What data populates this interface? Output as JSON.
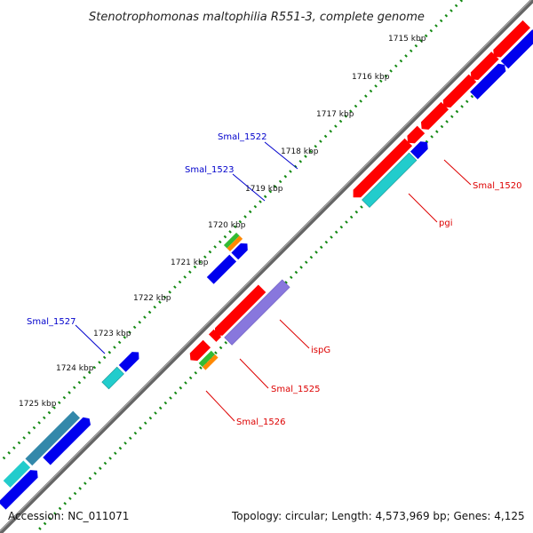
{
  "title": "Stenotrophomonas maltophilia R551-3, complete genome",
  "footer": {
    "accession": "Accession: NC_011071",
    "topology": "Topology: circular; Length: 4,573,969 bp; Genes: 4,125"
  },
  "scale_ticks": [
    "1715 kbp",
    "1716 kbp",
    "1717 kbp",
    "1718 kbp",
    "1719 kbp",
    "1720 kbp",
    "1721 kbp",
    "1722 kbp",
    "1723 kbp",
    "1724 kbp",
    "1725 kbp"
  ],
  "gene_labels": {
    "smal_1522": "Smal_1522",
    "smal_1523": "Smal_1523",
    "smal_1527": "Smal_1527",
    "smal_1520": "Smal_1520",
    "pgi": "pgi",
    "ispg": "ispG",
    "smal_1525": "Smal_1525",
    "smal_1526": "Smal_1526"
  },
  "colors": {
    "cds_forward": "#ff0000",
    "cds_reverse": "#0000ee",
    "rna": "#22cccc",
    "highlight": "#8877dd",
    "green": "#33bb33",
    "orange": "#ff8800",
    "backbone": "#888888",
    "ticks": "#118811",
    "label_blue": "#0000cc",
    "label_red": "#dd0000"
  }
}
